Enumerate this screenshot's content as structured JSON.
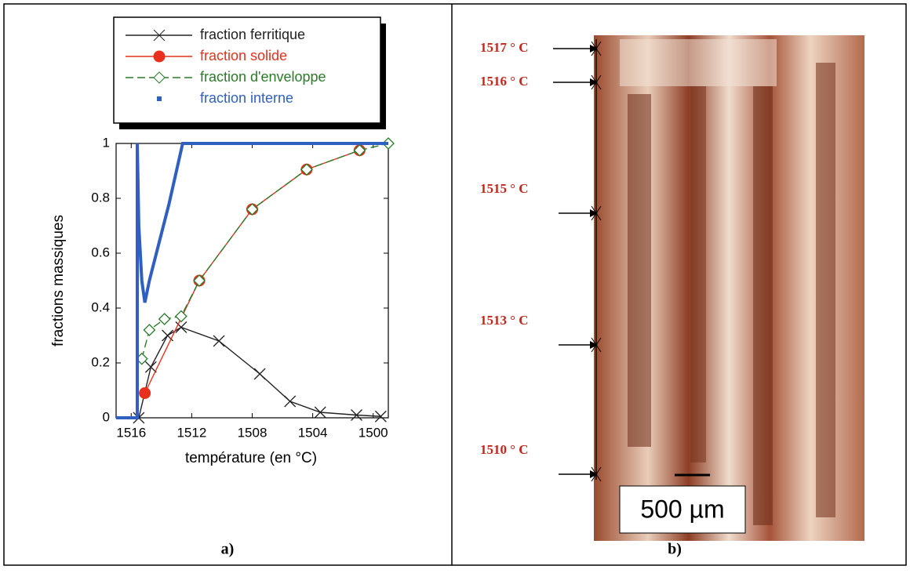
{
  "chart_data": {
    "type": "line",
    "xlabel": "température (en °C)",
    "ylabel": "fractions massiques",
    "xlim": [
      1517,
      1499
    ],
    "ylim": [
      0,
      1
    ],
    "xticks": [
      1516,
      1512,
      1508,
      1504,
      1500
    ],
    "yticks": [
      0,
      0.2,
      0.4,
      0.6,
      0.8,
      1
    ],
    "series": [
      {
        "name": "fraction ferritique",
        "color": "#222222",
        "marker": "x",
        "x": [
          1515.5,
          1514.7,
          1513.6,
          1512.7,
          1510.2,
          1507.5,
          1505.5,
          1503.5,
          1501.1,
          1499.5
        ],
        "values": [
          0,
          0.185,
          0.3,
          0.33,
          0.28,
          0.16,
          0.06,
          0.02,
          0.01,
          0.005
        ]
      },
      {
        "name": "fraction solide",
        "color": "#e8301c",
        "marker": "circle",
        "x": [
          1515.1,
          1511.5,
          1508,
          1504.4,
          1500.9
        ],
        "values": [
          0.09,
          0.5,
          0.76,
          0.905,
          0.975
        ]
      },
      {
        "name": "fraction d'enveloppe",
        "color": "#2a7a2a",
        "marker": "diamond",
        "dash": true,
        "x": [
          1515.3,
          1514.8,
          1513.8,
          1512.7,
          1511.5,
          1508,
          1504.4,
          1500.9,
          1499
        ],
        "values": [
          0.215,
          0.32,
          0.36,
          0.37,
          0.5,
          0.76,
          0.905,
          0.975,
          1
        ]
      },
      {
        "name": "fraction interne",
        "color": "#2f5fbf",
        "marker": "none",
        "x": [
          1517,
          1515.6,
          1515.6,
          1515.5,
          1515.3,
          1515.1,
          1514.8,
          1513.5,
          1512.6,
          1499
        ],
        "values": [
          0,
          0,
          1,
          0.7,
          0.5,
          0.42,
          0.5,
          0.78,
          1,
          1
        ]
      }
    ]
  },
  "captions": [
    "a)",
    "b)"
  ],
  "micrograph": {
    "labels": [
      "1517 ° C",
      "1516 ° C",
      "1515 ° C",
      "1513 ° C",
      "1510 ° C"
    ],
    "scale_bar": "500 µm"
  }
}
